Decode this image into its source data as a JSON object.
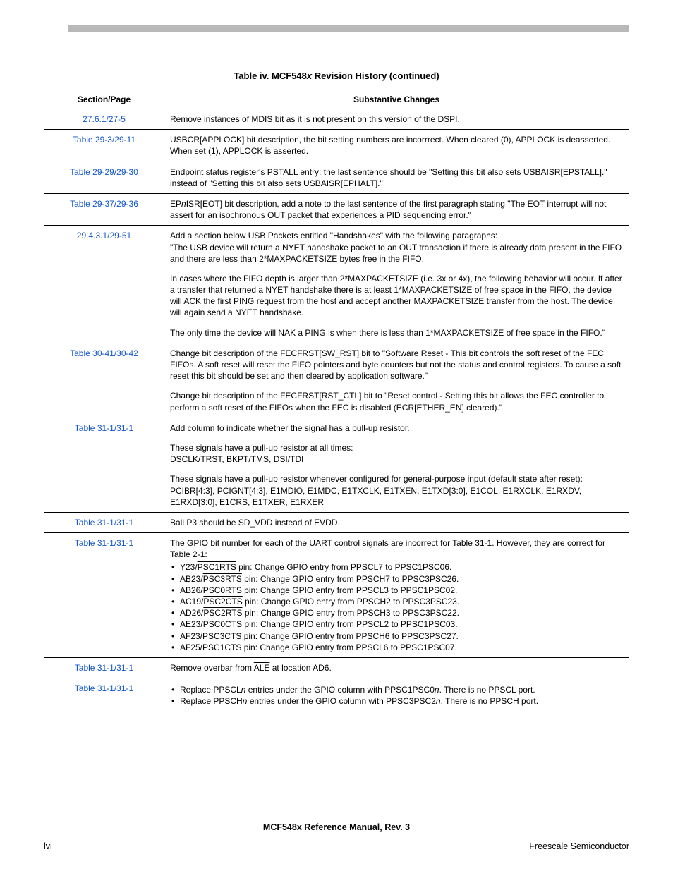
{
  "caption_prefix": "Table iv. MCF548",
  "caption_italic": "x",
  "caption_suffix": " Revision History (continued)",
  "headers": {
    "section": "Section/Page",
    "changes": "Substantive Changes"
  },
  "rows": [
    {
      "section": "27.6.1/27-5",
      "content": [
        {
          "type": "para",
          "text": "Remove instances of MDIS bit as it is not present on this version of the DSPI."
        }
      ]
    },
    {
      "section": "Table 29-3/29-11",
      "content": [
        {
          "type": "para",
          "text": "USBCR[APPLOCK] bit description, the bit setting numbers are incorrrect. When cleared (0), APPLOCK is deasserted. When set (1), APPLOCK is asserted."
        }
      ]
    },
    {
      "section": "Table 29-29/29-30",
      "content": [
        {
          "type": "para",
          "text": "Endpoint status register's PSTALL entry: the last sentence should be \"Setting this bit also sets USBAISR[EPSTALL].\" instead of \"Setting this bit also sets USBAISR[EPHALT].\""
        }
      ]
    },
    {
      "section": "Table 29-37/29-36",
      "content": [
        {
          "type": "epn"
        }
      ]
    },
    {
      "section": "29.4.3.1/29-51",
      "content": [
        {
          "type": "para",
          "text": "Add a section below USB Packets entitled \"Handshakes\" with the following paragraphs:\n\"The USB device will return a NYET handshake packet to an OUT transaction if there is already data present in the FIFO and there are less than 2*MAXPACKETSIZE bytes free in the FIFO."
        },
        {
          "type": "para",
          "text": "In cases where the FIFO depth is larger than 2*MAXPACKETSIZE (i.e. 3x or 4x), the following behavior will occur.  If after a transfer that returned a NYET handshake there is at least 1*MAXPACKETSIZE of free space in the FIFO, the device will ACK the first PING request from the host and accept another MAXPACKETSIZE transfer from the host.  The device will again send a NYET handshake."
        },
        {
          "type": "para",
          "text": "The only time the device will NAK a PING is when there is less than 1*MAXPACKETSIZE of free space in the FIFO.\""
        }
      ]
    },
    {
      "section": "Table 30-41/30-42",
      "content": [
        {
          "type": "para",
          "text": "Change bit description of the FECFRST[SW_RST] bit to \"Software Reset - This bit controls the soft reset of the FEC FIFOs. A soft reset will reset the FIFO pointers and byte counters but not the status and control registers. To cause a soft reset this bit should be set and then cleared by application software.\""
        },
        {
          "type": "para",
          "text": "Change bit description of the FECFRST[RST_CTL] bit to \"Reset control - Setting this bit allows the FEC controller to perform a soft reset of the FIFOs when the FEC is disabled (ECR[ETHER_EN] cleared).\""
        }
      ]
    },
    {
      "section": "Table 31-1/31-1",
      "content": [
        {
          "type": "para",
          "text": "Add column to indicate whether the signal has a pull-up resistor."
        },
        {
          "type": "para",
          "text": "These signals have a pull-up resistor at all times:\nDSCLK/TRST, BKPT/TMS, DSI/TDI"
        },
        {
          "type": "para",
          "text": "These signals have a pull-up resistor whenever configured for general-purpose input (default state after reset):\nPCIBR[4:3], PCIGNT[4:3], E1MDIO, E1MDC, E1TXCLK, E1TXEN, E1TXD[3:0], E1COL, E1RXCLK, E1RXDV, E1RXD[3:0], E1CRS, E1TXER, E1RXER"
        }
      ]
    },
    {
      "section": "Table 31-1/31-1",
      "content": [
        {
          "type": "para",
          "text": "Ball P3 should be SD_VDD instead of EVDD."
        }
      ]
    },
    {
      "section": "Table 31-1/31-1",
      "content": [
        {
          "type": "gpio"
        }
      ]
    },
    {
      "section": "Table 31-1/31-1",
      "content": [
        {
          "type": "ale"
        }
      ]
    },
    {
      "section": "Table 31-1/31-1",
      "content": [
        {
          "type": "ppscl"
        }
      ]
    }
  ],
  "epn": {
    "pre": "EP",
    "n": "n",
    "post": "ISR[EOT] bit description, add a note to the last sentence of the first paragraph stating \"The EOT interrupt will not assert for an isochronous OUT packet that experiences a PID sequencing error.\""
  },
  "gpio": {
    "intro": "The GPIO bit number for each of the UART control signals are incorrect for Table 31-1. However, they are correct for Table 2-1:",
    "items": [
      {
        "pre": "Y23/",
        "sig": "PSC1RTS",
        "post": " pin: Change GPIO entry from PPSCL7 to PPSC1PSC06."
      },
      {
        "pre": "AB23/",
        "sig": "PSC3RTS",
        "post": " pin: Change GPIO entry from PPSCH7 to PPSC3PSC26."
      },
      {
        "pre": "AB26/",
        "sig": "PSC0RTS",
        "post": " pin: Change GPIO entry from PPSCL3 to PPSC1PSC02."
      },
      {
        "pre": "AC19/",
        "sig": "PSC2CTS",
        "post": " pin: Change GPIO entry from PPSCH2 to PPSC3PSC23."
      },
      {
        "pre": "AD26/",
        "sig": "PSC2RTS",
        "post": " pin: Change GPIO entry from PPSCH3 to PPSC3PSC22."
      },
      {
        "pre": "AE23/",
        "sig": "PSC0CTS",
        "post": " pin: Change GPIO entry from PPSCL2 to PPSC1PSC03."
      },
      {
        "pre": "AF23/",
        "sig": "PSC3CTS",
        "post": " pin: Change GPIO entry from PPSCH6 to PPSC3PSC27."
      },
      {
        "pre": "AF25/",
        "sig": "PSC1CTS",
        "post": " pin: Change GPIO entry from PPSCL6 to PPSC1PSC07."
      }
    ]
  },
  "ale": {
    "pre": "Remove overbar from ",
    "sig": "ALE",
    "post": " at location AD6."
  },
  "ppscl": {
    "items": [
      {
        "pre": "Replace PPSCL",
        "n": "n",
        "mid": " entries under the GPIO column with PPSC1PSC0",
        "n2": "n",
        "post": ". There is no PPSCL port."
      },
      {
        "pre": "Replace PPSCH",
        "n": "n",
        "mid": " entries under the GPIO column with PPSC3PSC2",
        "n2": "n",
        "post": ". There is no PPSCH port."
      }
    ]
  },
  "footer": {
    "title": "MCF548x Reference Manual, Rev. 3",
    "left": "lvi",
    "right": "Freescale Semiconductor"
  },
  "colors": {
    "text": "#000000",
    "link": "#1155cc",
    "header_bar": "#b8b8b8",
    "background": "#ffffff"
  },
  "fonts": {
    "base_size_pt": 9,
    "caption_size_pt": 10
  }
}
